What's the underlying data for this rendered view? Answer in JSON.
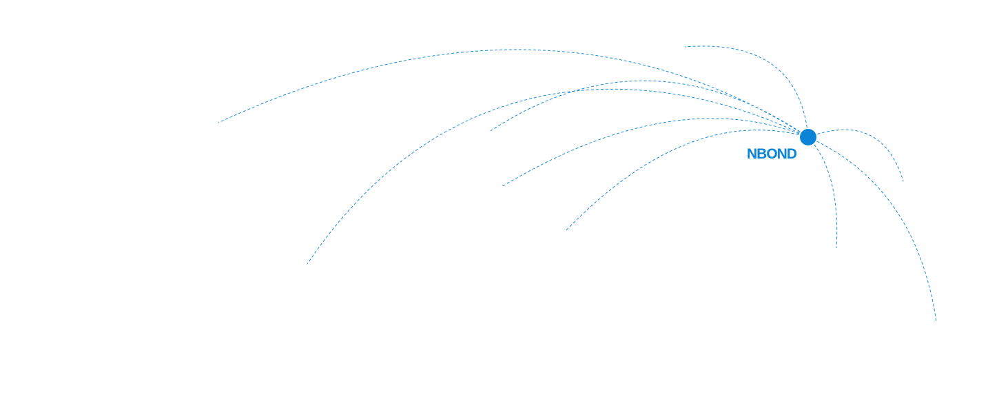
{
  "hub": {
    "label": "NBOND",
    "color": "#0a84d6"
  },
  "line_color": "#1a8ad8",
  "connection_count": 9
}
